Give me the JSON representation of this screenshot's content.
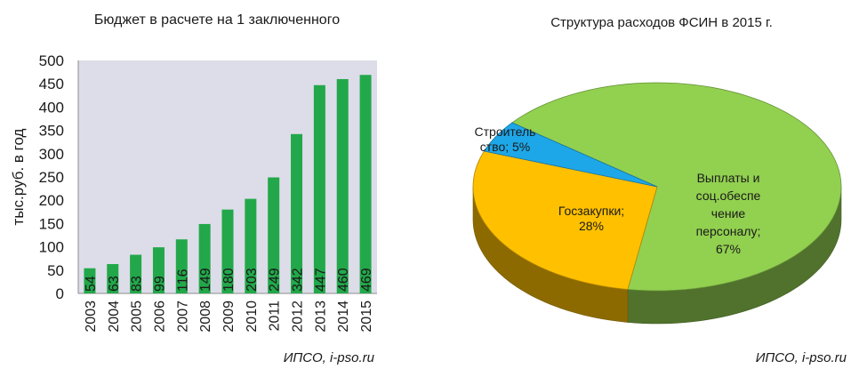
{
  "chart_data": [
    {
      "type": "bar",
      "title": "Бюджет в расчете на 1 заключенного",
      "ylabel": "тыс.руб. в год",
      "xlabel": "",
      "ylim": [
        0,
        500
      ],
      "yticks": [
        "0",
        "50",
        "100",
        "150",
        "200",
        "250",
        "300",
        "350",
        "400",
        "450",
        "500"
      ],
      "categories": [
        "2003",
        "2004",
        "2005",
        "2006",
        "2007",
        "2008",
        "2009",
        "2010",
        "2011",
        "2012",
        "2013",
        "2014",
        "2015"
      ],
      "values": [
        54,
        63,
        83,
        99,
        116,
        149,
        180,
        203,
        249,
        342,
        447,
        460,
        469
      ],
      "data_labels": [
        "54",
        "63",
        "83",
        "99",
        "116",
        "149",
        "180",
        "203",
        "249",
        "342",
        "447",
        "460",
        "469"
      ],
      "bar_color": "#22a84a",
      "grid": false,
      "source": "ИПСО, i-pso.ru"
    },
    {
      "type": "pie",
      "title": "Структура  расходов ФСИН в 2015 г.",
      "slices": [
        {
          "label": "Выплаты и соц.обеспечение персоналу",
          "value": 67,
          "color": "#92d050",
          "text_lines": [
            "Выплаты и",
            "соц.обеспе",
            "чение",
            "персоналу;",
            "67%"
          ]
        },
        {
          "label": "Госзакупки",
          "value": 28,
          "color": "#ffc000",
          "text_lines": [
            "Госзакупки;",
            "28%"
          ]
        },
        {
          "label": "Строительство",
          "value": 5,
          "color": "#1ea7e8",
          "text_lines": [
            "Строитель",
            "ство; 5%"
          ]
        }
      ],
      "legend": "none",
      "source": "ИПСО, i-pso.ru"
    }
  ]
}
